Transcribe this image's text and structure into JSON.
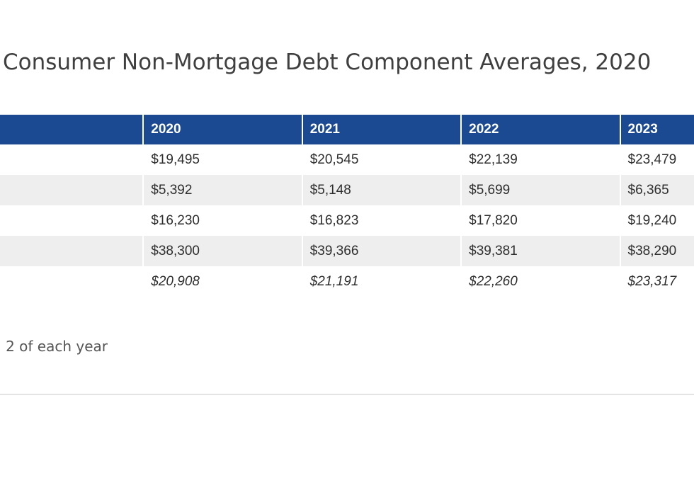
{
  "chart_data": {
    "type": "table",
    "title": "Consumer Non-Mortgage Debt Component Averages, 2020",
    "columns": [
      "",
      "2020",
      "2021",
      "2022",
      "2023"
    ],
    "rows": [
      {
        "label": "",
        "values": [
          "$19,495",
          "$20,545",
          "$22,139",
          "$23,479"
        ],
        "italic": false
      },
      {
        "label": "",
        "values": [
          "$5,392",
          "$5,148",
          "$5,699",
          "$6,365"
        ],
        "italic": false
      },
      {
        "label": "",
        "values": [
          "$16,230",
          "$16,823",
          "$17,820",
          "$19,240"
        ],
        "italic": false
      },
      {
        "label": "",
        "values": [
          "$38,300",
          "$39,366",
          "$39,381",
          "$38,290"
        ],
        "italic": false
      },
      {
        "label": "",
        "values": [
          "$20,908",
          "$21,191",
          "$22,260",
          "$23,317"
        ],
        "italic": true
      }
    ],
    "note": "2 of each year"
  },
  "colors": {
    "header_bg": "#1c4a92",
    "header_text": "#ffffff",
    "stripe_bg": "#eeeeee",
    "body_text": "#2e2e2e",
    "title_text": "#3f3f3f"
  }
}
